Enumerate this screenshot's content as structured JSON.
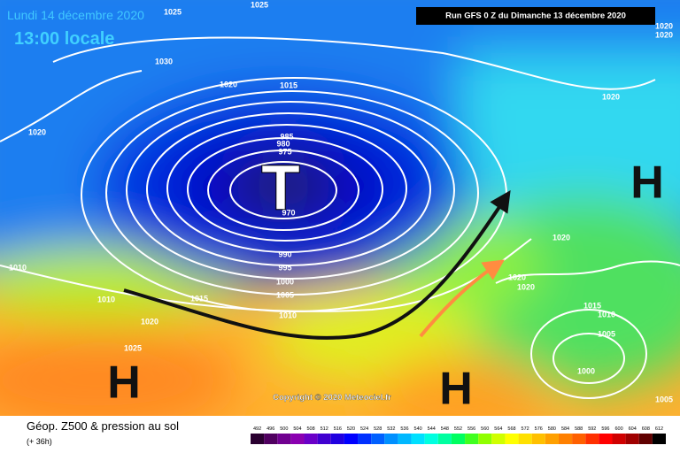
{
  "header": {
    "date": "Lundi 14 décembre 2020",
    "time": "13:00 locale",
    "run": "Run GFS 0 Z du Dimanche 13 décembre 2020"
  },
  "map": {
    "low_symbol": "T",
    "high_symbols": [
      "H",
      "H",
      "H"
    ],
    "isobar_labels": [
      "1025",
      "1025",
      "1030",
      "1020",
      "1015",
      "1020",
      "985",
      "980",
      "975",
      "970",
      "990",
      "995",
      "1000",
      "1005",
      "1010",
      "1015",
      "1010",
      "1020",
      "1025",
      "1010",
      "1020",
      "1020",
      "1020",
      "1020",
      "1015",
      "1010",
      "1005",
      "1000",
      "1005",
      "1020",
      "1020"
    ],
    "copyright": "Copyright © 2020 Meteociel.fr"
  },
  "legend": {
    "title": "Géop. Z500 & pression au sol",
    "subtitle": "(+ 36h)",
    "levels": [
      492,
      496,
      500,
      504,
      508,
      512,
      516,
      520,
      524,
      528,
      532,
      536,
      540,
      544,
      548,
      552,
      556,
      560,
      564,
      568,
      572,
      576,
      580,
      584,
      588,
      592,
      596,
      600,
      604,
      608,
      612
    ],
    "colors": [
      "#2a0030",
      "#500060",
      "#700090",
      "#8a00b0",
      "#6a00c8",
      "#4000d0",
      "#2000e0",
      "#0000ff",
      "#0030ff",
      "#0060ff",
      "#0090ff",
      "#00b8ff",
      "#00e0ff",
      "#00ffe0",
      "#00ffa0",
      "#00ff60",
      "#40ff20",
      "#90ff00",
      "#d0ff00",
      "#ffff00",
      "#ffe000",
      "#ffc000",
      "#ffa000",
      "#ff8000",
      "#ff6000",
      "#ff3000",
      "#ff0000",
      "#d00000",
      "#a00000",
      "#600000",
      "#000000"
    ]
  }
}
